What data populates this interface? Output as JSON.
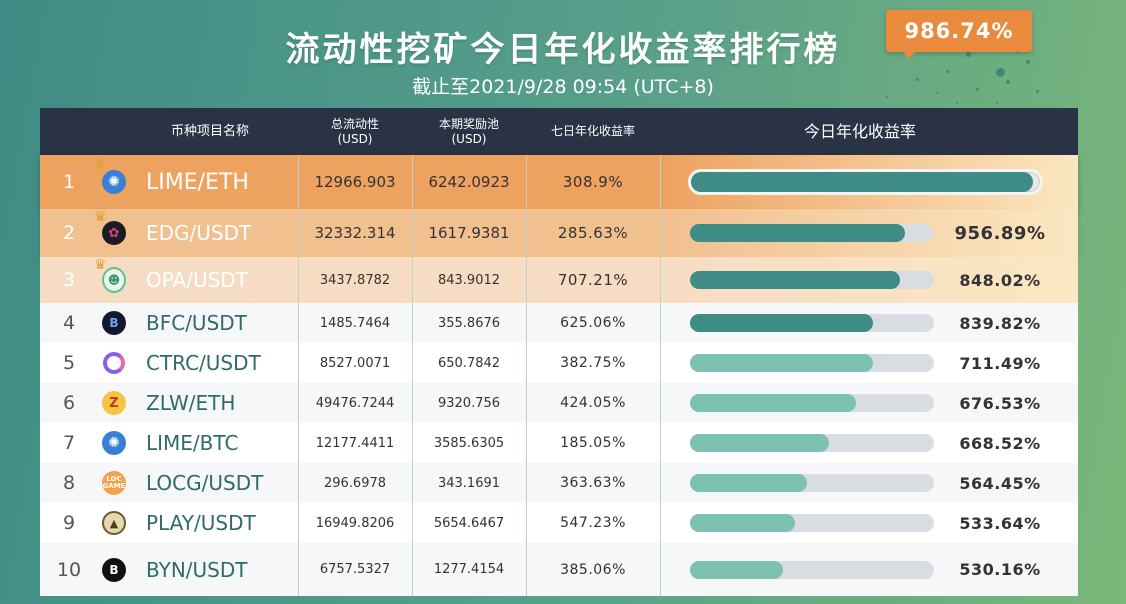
{
  "title": "流动性挖矿今日年化收益率排行榜",
  "subtitle": "截止至2021/9/28 09:54 (UTC+8)",
  "header": {
    "name": "币种项目名称",
    "liquidity": [
      "总流动性",
      "(USD)"
    ],
    "pool": [
      "本期奖励池",
      "(USD)"
    ],
    "apr7": "七日年化收益率",
    "today": "今日年化收益率"
  },
  "top_badge": "986.74%",
  "colors": {
    "row1": "#eda260",
    "row2": "#f1c08f",
    "row3": "#f7dcc4",
    "header": "#2a3346",
    "bar_dark": "#3f8c86",
    "bar_light": "#7dc1b0",
    "track": "#d9dde2"
  },
  "rows": [
    {
      "rank": "1",
      "pair": "LIME/ETH",
      "liquidity": "12966.903",
      "pool": "6242.0923",
      "apr7": "308.9%",
      "today": "",
      "fill": 0.98,
      "icon": "lime-icon"
    },
    {
      "rank": "2",
      "pair": "EDG/USDT",
      "liquidity": "32332.314",
      "pool": "1617.9381",
      "apr7": "285.63%",
      "today": "956.89%",
      "fill": 0.88,
      "icon": "edg-icon"
    },
    {
      "rank": "3",
      "pair": "OPA/USDT",
      "liquidity": "3437.8782",
      "pool": "843.9012",
      "apr7": "707.21%",
      "today": "848.02%",
      "fill": 0.86,
      "icon": "opa-icon"
    },
    {
      "rank": "4",
      "pair": "BFC/USDT",
      "liquidity": "1485.7464",
      "pool": "355.8676",
      "apr7": "625.06%",
      "today": "839.82%",
      "fill": 0.75,
      "icon": "bfc-icon"
    },
    {
      "rank": "5",
      "pair": "CTRC/USDT",
      "liquidity": "8527.0071",
      "pool": "650.7842",
      "apr7": "382.75%",
      "today": "711.49%",
      "fill": 0.75,
      "icon": "ctrc-icon"
    },
    {
      "rank": "6",
      "pair": "ZLW/ETH",
      "liquidity": "49476.7244",
      "pool": "9320.756",
      "apr7": "424.05%",
      "today": "676.53%",
      "fill": 0.68,
      "icon": "zlw-icon"
    },
    {
      "rank": "7",
      "pair": "LIME/BTC",
      "liquidity": "12177.4411",
      "pool": "3585.6305",
      "apr7": "185.05%",
      "today": "668.52%",
      "fill": 0.57,
      "icon": "lime-icon"
    },
    {
      "rank": "8",
      "pair": "LOCG/USDT",
      "liquidity": "296.6978",
      "pool": "343.1691",
      "apr7": "363.63%",
      "today": "564.45%",
      "fill": 0.48,
      "icon": "locg-icon"
    },
    {
      "rank": "9",
      "pair": "PLAY/USDT",
      "liquidity": "16949.8206",
      "pool": "5654.6467",
      "apr7": "547.23%",
      "today": "533.64%",
      "fill": 0.43,
      "icon": "play-icon"
    },
    {
      "rank": "10",
      "pair": "BYN/USDT",
      "liquidity": "6757.5327",
      "pool": "1277.4154",
      "apr7": "385.06%",
      "today": "530.16%",
      "fill": 0.38,
      "icon": "byn-icon"
    }
  ]
}
